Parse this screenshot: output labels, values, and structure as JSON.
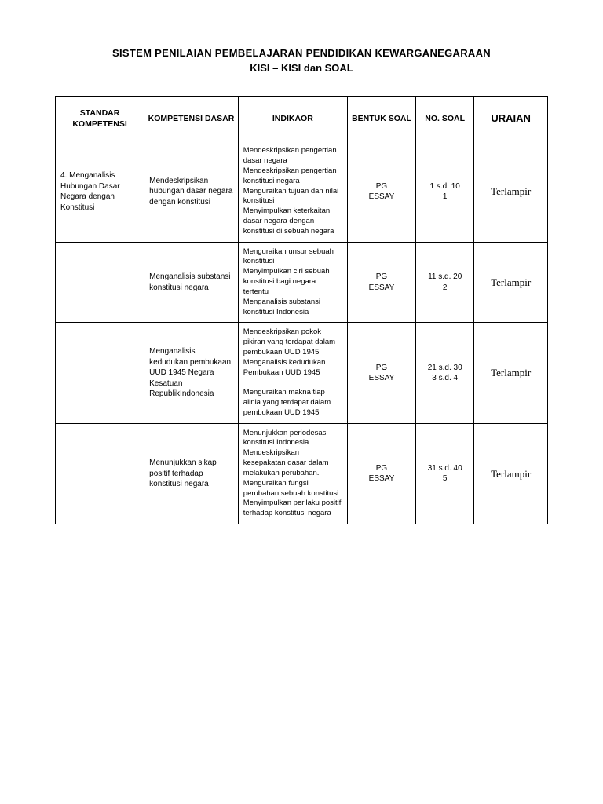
{
  "title": {
    "line1": "SISTEM PENILAIAN PEMBELAJARAN PENDIDIKAN KEWARGANEGARAAN",
    "line2": "KISI – KISI dan SOAL"
  },
  "headers": {
    "standar": "STANDAR KOMPETENSI",
    "kompetensi": "KOMPETENSI DASAR",
    "indikator": "INDIKAOR",
    "bentuk": "BENTUK SOAL",
    "no": "NO. SOAL",
    "uraian": "URAIAN"
  },
  "rows": [
    {
      "standar": "4. Menganalisis Hubungan Dasar Negara dengan Konstitusi",
      "kompetensi": "Mendeskripsikan hubungan dasar negara dengan konstitusi",
      "indikator": "Mendeskripsikan pengertian dasar negara\nMendeskripsikan pengertian konstitusi negara\nMenguraikan tujuan dan nilai konstitusi\nMenyimpulkan keterkaitan dasar negara dengan konstitusi di sebuah negara",
      "bentuk": "PG\nESSAY",
      "no": "1 s.d. 10\n1",
      "uraian": "Terlampir"
    },
    {
      "standar": "",
      "kompetensi": "Menganalisis substansi konstitusi negara",
      "indikator": "Menguraikan unsur sebuah konstitusi\nMenyimpulkan ciri sebuah konstitusi bagi negara tertentu\nMenganalisis substansi konstitusi Indonesia",
      "bentuk": "PG\nESSAY",
      "no": "11 s.d. 20\n2",
      "uraian": "Terlampir"
    },
    {
      "standar": "",
      "kompetensi": "Menganalisis kedudukan pembukaan UUD 1945 Negara Kesatuan RepublikIndonesia",
      "indikator": "Mendeskripsikan pokok pikiran yang terdapat dalam pembukaan UUD 1945\nMenganalisis kedudukan Pembukaan UUD 1945\n\nMenguraikan makna tiap alinia yang terdapat dalam pembukaan UUD 1945",
      "bentuk": "PG\nESSAY",
      "no": "21 s.d. 30\n3 s.d. 4",
      "uraian": "Terlampir"
    },
    {
      "standar": "",
      "kompetensi": "Menunjukkan sikap positif terhadap konstitusi negara",
      "indikator": "Menunjukkan periodesasi konstitusi Indonesia\nMendeskripsikan kesepakatan dasar dalam melakukan perubahan.\nMenguraikan fungsi perubahan sebuah konstitusi\nMenyimpulkan perilaku positif terhadap konstitusi negara",
      "bentuk": "PG\nESSAY",
      "no": "31 s.d. 40\n5",
      "uraian": "Terlampir"
    }
  ]
}
